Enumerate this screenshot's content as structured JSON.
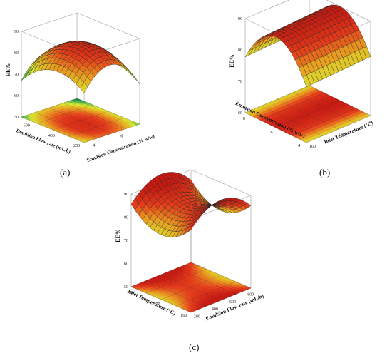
{
  "colors": {
    "high": "#c41a12",
    "mid_high": "#e23a1a",
    "mid": "#e8a020",
    "mid_low": "#d8e830",
    "low": "#34a853",
    "deep": "#1a6e3a",
    "grid": "#333333"
  },
  "chart_data": [
    {
      "type": "surface",
      "panel_label": "(a)",
      "zlabel": "EE%",
      "x_axis_label": "Emulsion Concentration (% w/w)",
      "y_axis_label": "Emulsion Flow rate (mL/h)",
      "z_ticks": [
        "90",
        "80",
        "70",
        "60",
        "50"
      ],
      "x_ticks": [
        "6",
        "4"
      ],
      "y_ticks": [
        "600",
        "400",
        "200"
      ],
      "zlim": [
        50,
        90
      ],
      "surface_shape": "dome, maximum near center"
    },
    {
      "type": "surface",
      "panel_label": "(b)",
      "zlabel": "EE%",
      "x_axis_label": "Inlet Temperature (°C)",
      "y_axis_label": "Emulsion Concentration (% w/w)",
      "z_ticks": [
        "90",
        "80",
        "70",
        "60"
      ],
      "x_ticks": [
        "160",
        "170",
        "180"
      ],
      "y_ticks": [
        "8",
        "6",
        "4"
      ],
      "zlim": [
        60,
        90
      ],
      "surface_shape": "ridge, maximum near mid concentration"
    },
    {
      "type": "surface",
      "panel_label": "(c)",
      "zlabel": "EE%",
      "x_axis_label": "Emulsion Flow rate (mL/h)",
      "y_axis_label": "Inlet Temperature (°C)",
      "z_ticks": [
        "90",
        "80",
        "70",
        "60",
        "50"
      ],
      "x_ticks": [
        "200",
        "400",
        "600",
        "800"
      ],
      "y_ticks": [
        "180",
        "170",
        "160"
      ],
      "zlim": [
        50,
        90
      ],
      "surface_shape": "saddle"
    }
  ]
}
